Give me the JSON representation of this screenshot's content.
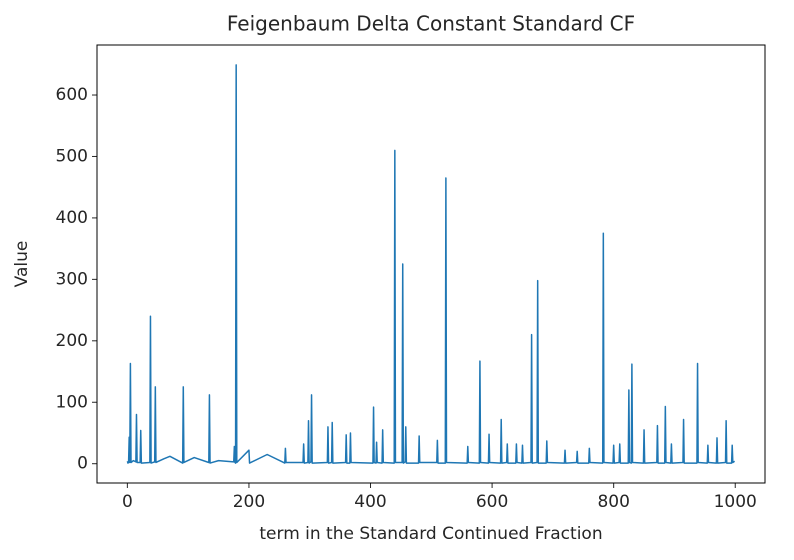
{
  "chart_data": {
    "type": "line",
    "title": "Feigenbaum Delta Constant Standard CF",
    "x_label": "term in the Standard Continued Fraction",
    "y_label": "Value",
    "color": "#1f77b4",
    "xlim": [
      -49.95,
      1048.95
    ],
    "ylim": [
      -31.4,
      681.4
    ],
    "xticks": [
      0,
      200,
      400,
      600,
      800,
      1000
    ],
    "yticks": [
      0,
      100,
      200,
      300,
      400,
      500,
      600
    ],
    "x": [
      0,
      1,
      2,
      3,
      4,
      5,
      6,
      10,
      14,
      15,
      16,
      21,
      22,
      23,
      37,
      38,
      39,
      45,
      46,
      47,
      60,
      70,
      91,
      92,
      93,
      110,
      134,
      135,
      136,
      150,
      175,
      176,
      177,
      178,
      179,
      180,
      200,
      201,
      230,
      259,
      260,
      261,
      289,
      290,
      291,
      297,
      298,
      299,
      302,
      303,
      304,
      329,
      330,
      331,
      336,
      337,
      338,
      359,
      360,
      361,
      366,
      367,
      368,
      404,
      405,
      406,
      409,
      410,
      411,
      419,
      420,
      421,
      439,
      440,
      441,
      452,
      453,
      454,
      457,
      458,
      459,
      479,
      480,
      481,
      509,
      510,
      511,
      523,
      524,
      525,
      559,
      560,
      561,
      579,
      580,
      581,
      594,
      595,
      596,
      614,
      615,
      616,
      624,
      625,
      626,
      639,
      640,
      641,
      649,
      650,
      651,
      664,
      665,
      666,
      674,
      675,
      676,
      689,
      690,
      691,
      719,
      720,
      721,
      739,
      740,
      741,
      759,
      760,
      761,
      782,
      783,
      784,
      799,
      800,
      801,
      809,
      810,
      811,
      824,
      825,
      826,
      829,
      830,
      831,
      849,
      850,
      851,
      871,
      872,
      873,
      884,
      885,
      886,
      894,
      895,
      896,
      914,
      915,
      916,
      937,
      938,
      939,
      954,
      955,
      956,
      969,
      970,
      971,
      984,
      985,
      986,
      994,
      995,
      996,
      999
    ],
    "values": [
      4,
      1,
      2,
      43,
      2,
      163,
      2,
      5,
      3,
      80,
      2,
      2,
      54,
      1,
      2,
      240,
      1,
      3,
      125,
      2,
      8,
      12,
      1,
      125,
      2,
      10,
      2,
      112,
      1,
      5,
      3,
      28,
      2,
      1,
      649,
      2,
      22,
      1,
      15,
      1,
      25,
      2,
      2,
      32,
      1,
      2,
      70,
      1,
      3,
      112,
      1,
      2,
      60,
      1,
      2,
      67,
      1,
      2,
      47,
      1,
      1,
      50,
      2,
      1,
      92,
      2,
      1,
      35,
      2,
      1,
      55,
      2,
      1,
      510,
      2,
      2,
      325,
      1,
      3,
      60,
      1,
      1,
      45,
      2,
      2,
      38,
      1,
      1,
      465,
      2,
      1,
      28,
      2,
      1,
      167,
      2,
      1,
      48,
      2,
      1,
      72,
      1,
      2,
      32,
      1,
      1,
      32,
      2,
      1,
      30,
      1,
      2,
      210,
      1,
      2,
      298,
      1,
      1,
      37,
      2,
      1,
      22,
      1,
      2,
      20,
      1,
      1,
      25,
      2,
      1,
      375,
      2,
      1,
      30,
      1,
      2,
      32,
      1,
      1,
      120,
      2,
      1,
      162,
      2,
      1,
      55,
      1,
      2,
      62,
      1,
      1,
      93,
      2,
      1,
      32,
      1,
      2,
      72,
      1,
      1,
      163,
      2,
      1,
      30,
      2,
      1,
      42,
      1,
      2,
      70,
      1,
      1,
      30,
      2,
      4
    ]
  }
}
